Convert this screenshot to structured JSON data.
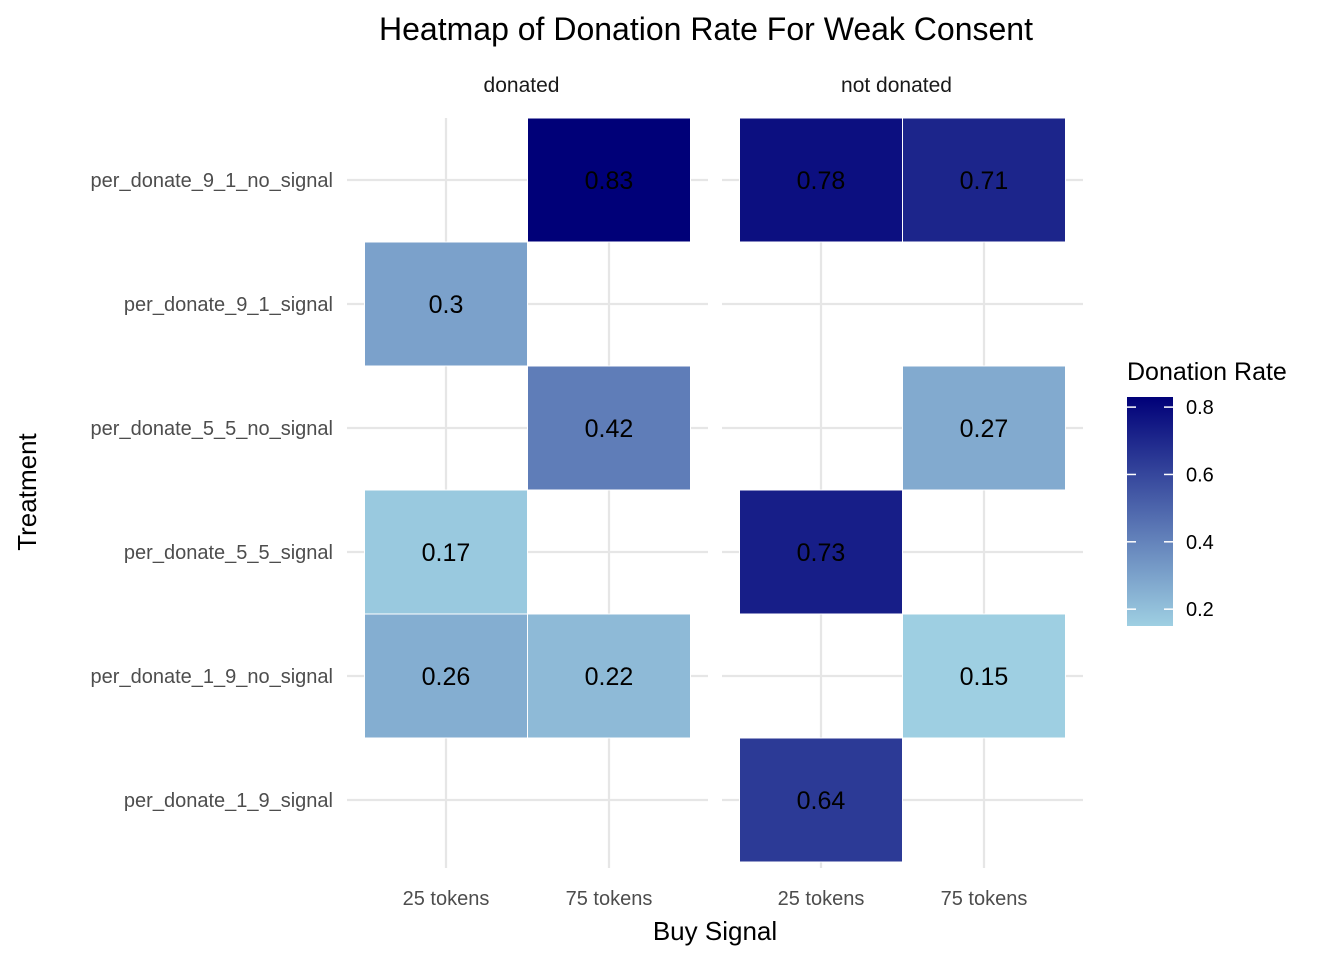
{
  "chart_data": {
    "type": "heatmap",
    "title": "Heatmap of Donation Rate For Weak Consent",
    "xlabel": "Buy Signal",
    "ylabel": "Treatment",
    "facets": [
      "donated",
      "not donated"
    ],
    "x_categories": [
      "25 tokens",
      "75 tokens"
    ],
    "y_categories": [
      "per_donate_9_1_no_signal",
      "per_donate_9_1_signal",
      "per_donate_5_5_no_signal",
      "per_donate_5_5_signal",
      "per_donate_1_9_no_signal",
      "per_donate_1_9_signal"
    ],
    "cells": [
      {
        "facet": "donated",
        "x": "75 tokens",
        "y": "per_donate_9_1_no_signal",
        "value": 0.83,
        "label": "0.83"
      },
      {
        "facet": "donated",
        "x": "25 tokens",
        "y": "per_donate_9_1_signal",
        "value": 0.3,
        "label": "0.3"
      },
      {
        "facet": "donated",
        "x": "75 tokens",
        "y": "per_donate_5_5_no_signal",
        "value": 0.42,
        "label": "0.42"
      },
      {
        "facet": "donated",
        "x": "25 tokens",
        "y": "per_donate_5_5_signal",
        "value": 0.17,
        "label": "0.17"
      },
      {
        "facet": "donated",
        "x": "25 tokens",
        "y": "per_donate_1_9_no_signal",
        "value": 0.26,
        "label": "0.26"
      },
      {
        "facet": "donated",
        "x": "75 tokens",
        "y": "per_donate_1_9_no_signal",
        "value": 0.22,
        "label": "0.22"
      },
      {
        "facet": "not donated",
        "x": "25 tokens",
        "y": "per_donate_9_1_no_signal",
        "value": 0.78,
        "label": "0.78"
      },
      {
        "facet": "not donated",
        "x": "75 tokens",
        "y": "per_donate_9_1_no_signal",
        "value": 0.71,
        "label": "0.71"
      },
      {
        "facet": "not donated",
        "x": "75 tokens",
        "y": "per_donate_5_5_no_signal",
        "value": 0.27,
        "label": "0.27"
      },
      {
        "facet": "not donated",
        "x": "25 tokens",
        "y": "per_donate_5_5_signal",
        "value": 0.73,
        "label": "0.73"
      },
      {
        "facet": "not donated",
        "x": "75 tokens",
        "y": "per_donate_1_9_no_signal",
        "value": 0.15,
        "label": "0.15"
      },
      {
        "facet": "not donated",
        "x": "25 tokens",
        "y": "per_donate_1_9_signal",
        "value": 0.64,
        "label": "0.64"
      }
    ],
    "legend": {
      "title": "Donation Rate",
      "position": "right",
      "range": [
        0.15,
        0.83
      ],
      "ticks": [
        0.2,
        0.4,
        0.6,
        0.8
      ],
      "tick_labels": [
        "0.2",
        "0.4",
        "0.6",
        "0.8"
      ],
      "color_low": "#9ECFE2",
      "color_high": "#000078"
    },
    "grid": true
  }
}
